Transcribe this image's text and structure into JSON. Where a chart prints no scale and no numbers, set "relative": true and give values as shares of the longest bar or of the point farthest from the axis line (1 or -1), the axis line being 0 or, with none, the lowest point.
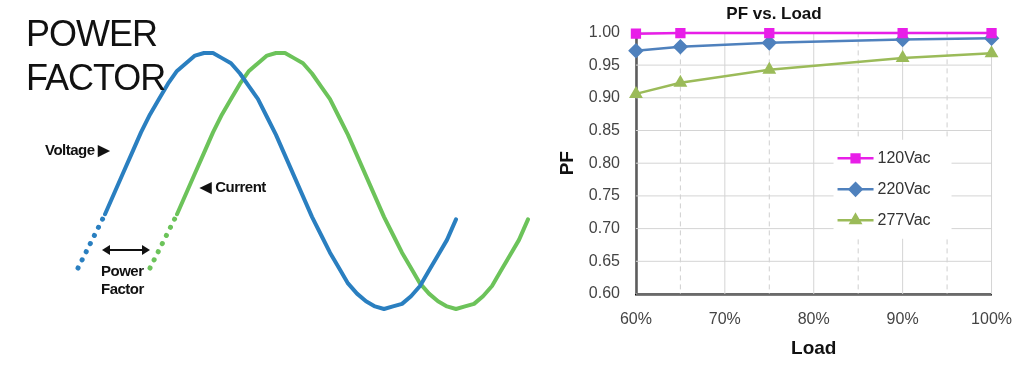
{
  "chart_data": [
    {
      "type": "line",
      "relative": true,
      "title": "POWER FACTOR",
      "annotations": [
        "Power Factor"
      ],
      "legend": false,
      "tick_labels": false,
      "categories": [
        null,
        null,
        null,
        null,
        null,
        null,
        null,
        null,
        null,
        null,
        null,
        null,
        null,
        null,
        null,
        null,
        null,
        null,
        null,
        null,
        null,
        null,
        null,
        null,
        null,
        null,
        null,
        null,
        null,
        null,
        null,
        null,
        null,
        null,
        null,
        null,
        null,
        null,
        null,
        null,
        null,
        null,
        null,
        null,
        null,
        null,
        null,
        null,
        null,
        null,
        null
      ],
      "series": [
        {
          "name": "Voltage ▶",
          "color": "#2a7fc0",
          "line_style": "solid",
          "values": [
            null,
            null,
            null,
            0.37,
            0.45,
            0.53,
            0.61,
            0.69,
            0.76,
            0.82,
            0.88,
            0.93,
            0.96,
            0.99,
            1.0,
            1.0,
            0.98,
            0.96,
            0.92,
            0.87,
            0.82,
            0.75,
            0.68,
            0.6,
            0.52,
            0.44,
            0.36,
            0.29,
            0.22,
            0.16,
            0.1,
            0.06,
            0.03,
            0.01,
            0.0,
            0.01,
            0.02,
            0.05,
            0.09,
            0.15,
            0.21,
            0.27,
            0.35,
            null,
            null,
            null,
            null,
            null,
            null,
            null,
            null
          ]
        },
        {
          "color": "#2a7fc0",
          "line_style": "dotted",
          "values": [
            0.16,
            0.23,
            0.3,
            0.37,
            null,
            null,
            null,
            null,
            null,
            null,
            null,
            null,
            null,
            null,
            null,
            null,
            null,
            null,
            null,
            null,
            null,
            null,
            null,
            null,
            null,
            null,
            null,
            null,
            null,
            null,
            null,
            null,
            null,
            null,
            null,
            null,
            null,
            null,
            null,
            null,
            null,
            null,
            null,
            null,
            null,
            null,
            null,
            null,
            null,
            null,
            null
          ]
        },
        {
          "name": "◀ Current",
          "color": "#6cc35a",
          "line_style": "solid",
          "values": [
            null,
            null,
            null,
            null,
            null,
            null,
            null,
            null,
            null,
            null,
            null,
            0.37,
            0.45,
            0.53,
            0.61,
            0.69,
            0.76,
            0.82,
            0.88,
            0.93,
            0.96,
            0.99,
            1.0,
            1.0,
            0.98,
            0.96,
            0.92,
            0.87,
            0.82,
            0.75,
            0.68,
            0.6,
            0.52,
            0.44,
            0.36,
            0.29,
            0.22,
            0.16,
            0.1,
            0.06,
            0.03,
            0.01,
            0.0,
            0.01,
            0.02,
            0.05,
            0.09,
            0.15,
            0.21,
            0.27,
            0.35
          ]
        },
        {
          "color": "#6cc35a",
          "line_style": "dotted",
          "values": [
            null,
            null,
            null,
            null,
            null,
            null,
            null,
            null,
            0.16,
            0.23,
            0.3,
            0.37,
            null,
            null,
            null,
            null,
            null,
            null,
            null,
            null,
            null,
            null,
            null,
            null,
            null,
            null,
            null,
            null,
            null,
            null,
            null,
            null,
            null,
            null,
            null,
            null,
            null,
            null,
            null,
            null,
            null,
            null,
            null,
            null,
            null,
            null,
            null,
            null,
            null,
            null,
            null
          ]
        }
      ]
    },
    {
      "type": "line",
      "title": "PF vs. Load",
      "xlabel": "Load",
      "ylabel": "PF",
      "x": [
        60,
        65,
        75,
        90,
        100
      ],
      "series": [
        {
          "name": "120Vac",
          "color": "#e81ee8",
          "marker": "square",
          "values": [
            0.998,
            0.999,
            0.999,
            0.999,
            0.999
          ]
        },
        {
          "name": "220Vac",
          "color": "#4f81bd",
          "marker": "diamond",
          "values": [
            0.972,
            0.978,
            0.984,
            0.989,
            0.991
          ]
        },
        {
          "name": "277Vac",
          "color": "#9bbb59",
          "marker": "triangle",
          "values": [
            0.906,
            0.923,
            0.943,
            0.961,
            0.968
          ]
        }
      ],
      "xlim": [
        60,
        100
      ],
      "xticks": [
        {
          "value": 60,
          "label": "60%"
        },
        {
          "value": 65,
          "label": null
        },
        {
          "value": 70,
          "label": "70%"
        },
        {
          "value": 75,
          "label": null
        },
        {
          "value": 80,
          "label": "80%"
        },
        {
          "value": 85,
          "label": null
        },
        {
          "value": 90,
          "label": "90%"
        },
        {
          "value": 95,
          "label": null
        },
        {
          "value": 100,
          "label": "100%"
        }
      ],
      "ylim": [
        0.6,
        1.0
      ],
      "yticks": [
        {
          "value": 0.6,
          "label": "0.60"
        },
        {
          "value": 0.65,
          "label": "0.65"
        },
        {
          "value": 0.7,
          "label": "0.70"
        },
        {
          "value": 0.75,
          "label": "0.75"
        },
        {
          "value": 0.8,
          "label": "0.80"
        },
        {
          "value": 0.85,
          "label": "0.85"
        },
        {
          "value": 0.9,
          "label": "0.90"
        },
        {
          "value": 0.95,
          "label": "0.95"
        },
        {
          "value": 1.0,
          "label": "1.00"
        }
      ],
      "grid": true,
      "legend": "right",
      "line_style": "solid"
    }
  ]
}
